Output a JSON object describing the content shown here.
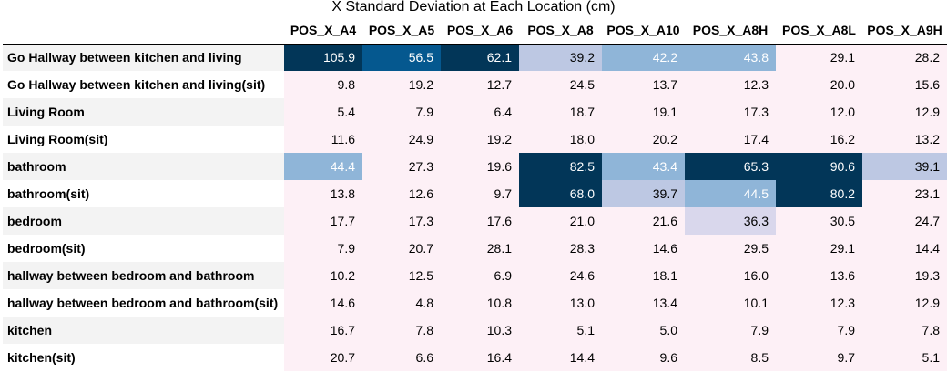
{
  "chart_data": {
    "type": "table",
    "title": "X Standard Deviation at Each Location (cm)",
    "columns": [
      "POS_X_A4",
      "POS_X_A5",
      "POS_X_A6",
      "POS_X_A8",
      "POS_X_A10",
      "POS_X_A8H",
      "POS_X_A8L",
      "POS_X_A9H"
    ],
    "rows": [
      {
        "label": "Go Hallway between kitchen and living",
        "values": [
          105.9,
          56.5,
          62.1,
          39.2,
          42.2,
          43.8,
          29.1,
          28.2
        ]
      },
      {
        "label": "Go Hallway between kitchen and living(sit)",
        "values": [
          9.8,
          19.2,
          12.7,
          24.5,
          13.7,
          12.3,
          20.0,
          15.6
        ]
      },
      {
        "label": "Living Room",
        "values": [
          5.4,
          7.9,
          6.4,
          18.7,
          19.1,
          17.3,
          12.0,
          12.9
        ]
      },
      {
        "label": "Living Room(sit)",
        "values": [
          11.6,
          24.9,
          19.2,
          18.0,
          20.2,
          17.4,
          16.2,
          13.2
        ]
      },
      {
        "label": "bathroom",
        "values": [
          44.4,
          27.3,
          19.6,
          82.5,
          43.4,
          65.3,
          90.6,
          39.1
        ]
      },
      {
        "label": "bathroom(sit)",
        "values": [
          13.8,
          12.6,
          9.7,
          68.0,
          39.7,
          44.5,
          80.2,
          23.1
        ]
      },
      {
        "label": "bedroom",
        "values": [
          17.7,
          17.3,
          17.6,
          21.0,
          21.6,
          36.3,
          30.5,
          24.7
        ]
      },
      {
        "label": "bedroom(sit)",
        "values": [
          7.9,
          20.7,
          28.1,
          28.3,
          14.6,
          29.5,
          29.1,
          14.4
        ]
      },
      {
        "label": "hallway between bedroom and bathroom",
        "values": [
          10.2,
          12.5,
          6.9,
          24.6,
          18.1,
          16.0,
          13.6,
          19.3
        ]
      },
      {
        "label": "hallway between bedroom and bathroom(sit)",
        "values": [
          14.6,
          4.8,
          10.8,
          13.0,
          13.4,
          10.1,
          12.3,
          12.9
        ]
      },
      {
        "label": "kitchen",
        "values": [
          16.7,
          7.8,
          10.3,
          5.1,
          5.0,
          7.9,
          7.9,
          7.8
        ]
      },
      {
        "label": "kitchen(sit)",
        "values": [
          20.7,
          6.6,
          16.4,
          14.4,
          9.6,
          8.5,
          9.7,
          5.1
        ]
      }
    ],
    "colors": {
      "low": "#fdf0f6",
      "mid_low": "#d9d7ec",
      "mid": "#bdc8e3",
      "mid_high": "#8fb5d8",
      "high": "#05588f",
      "max": "#023658",
      "text_dark": "#000000",
      "text_light": "#ffffff"
    }
  }
}
